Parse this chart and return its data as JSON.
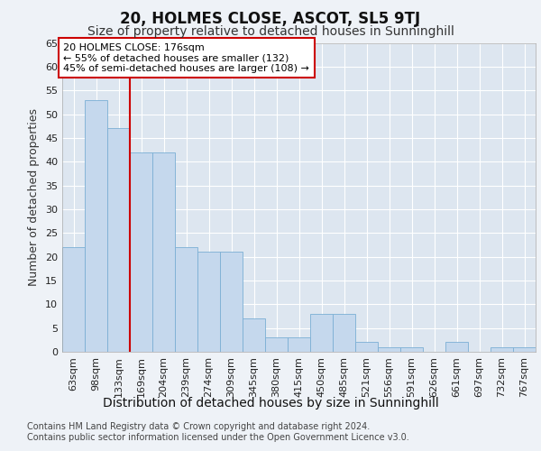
{
  "title": "20, HOLMES CLOSE, ASCOT, SL5 9TJ",
  "subtitle": "Size of property relative to detached houses in Sunninghill",
  "xlabel": "Distribution of detached houses by size in Sunninghill",
  "ylabel": "Number of detached properties",
  "footer_line1": "Contains HM Land Registry data © Crown copyright and database right 2024.",
  "footer_line2": "Contains public sector information licensed under the Open Government Licence v3.0.",
  "categories": [
    "63sqm",
    "98sqm",
    "133sqm",
    "169sqm",
    "204sqm",
    "239sqm",
    "274sqm",
    "309sqm",
    "345sqm",
    "380sqm",
    "415sqm",
    "450sqm",
    "485sqm",
    "521sqm",
    "556sqm",
    "591sqm",
    "626sqm",
    "661sqm",
    "697sqm",
    "732sqm",
    "767sqm"
  ],
  "values": [
    22,
    53,
    47,
    42,
    42,
    22,
    21,
    21,
    7,
    3,
    3,
    8,
    8,
    2,
    1,
    1,
    0,
    2,
    0,
    1,
    1
  ],
  "bar_color": "#c5d8ed",
  "bar_edge_color": "#7bafd4",
  "annotation_text": "20 HOLMES CLOSE: 176sqm\n← 55% of detached houses are smaller (132)\n45% of semi-detached houses are larger (108) →",
  "annotation_box_edge": "#cc0000",
  "vline_color": "#cc0000",
  "ylim": [
    0,
    65
  ],
  "yticks": [
    0,
    5,
    10,
    15,
    20,
    25,
    30,
    35,
    40,
    45,
    50,
    55,
    60,
    65
  ],
  "background_color": "#eef2f7",
  "plot_bg_color": "#dde6f0",
  "grid_color": "#ffffff",
  "title_fontsize": 12,
  "subtitle_fontsize": 10,
  "xlabel_fontsize": 10,
  "ylabel_fontsize": 9,
  "tick_fontsize": 8,
  "annotation_fontsize": 8,
  "footer_fontsize": 7
}
